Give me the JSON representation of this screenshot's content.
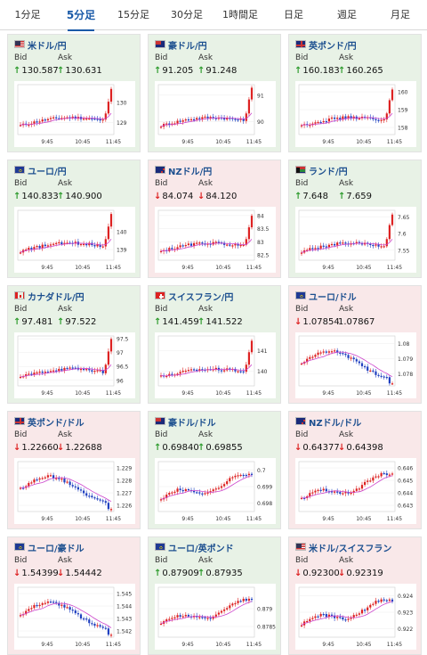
{
  "tabs": [
    "1分足",
    "5分足",
    "15分足",
    "30分足",
    "1時間足",
    "日足",
    "週足",
    "月足"
  ],
  "active_tab": 1,
  "labels": {
    "bid": "Bid",
    "ask": "Ask"
  },
  "colors": {
    "up_bg": "#e8f2e6",
    "down_bg": "#f9e8e9",
    "up_arrow": "#2e9b2e",
    "down_arrow": "#dd2222",
    "candle_up": "#dd2222",
    "candle_down": "#2040c0",
    "ma_line": "#cc44cc"
  },
  "cards": [
    {
      "pair": "米ドル/円",
      "flag": "us",
      "dir": "up",
      "bid": "130.587",
      "bid_dir": "up",
      "ask": "130.631",
      "ask_dir": "up"
    },
    {
      "pair": "豪ドル/円",
      "flag": "au",
      "dir": "up",
      "bid": "91.205",
      "bid_dir": "up",
      "ask": "91.248",
      "ask_dir": "up"
    },
    {
      "pair": "英ポンド/円",
      "flag": "gb",
      "dir": "up",
      "bid": "160.183",
      "bid_dir": "up",
      "ask": "160.265",
      "ask_dir": "up"
    },
    {
      "pair": "ユーロ/円",
      "flag": "eu",
      "dir": "up",
      "bid": "140.833",
      "bid_dir": "up",
      "ask": "140.900",
      "ask_dir": "up"
    },
    {
      "pair": "NZドル/円",
      "flag": "nz",
      "dir": "down",
      "bid": "84.074",
      "bid_dir": "down",
      "ask": "84.120",
      "ask_dir": "down"
    },
    {
      "pair": "ランド/円",
      "flag": "za",
      "dir": "up",
      "bid": "7.648",
      "bid_dir": "up",
      "ask": "7.659",
      "ask_dir": "up"
    },
    {
      "pair": "カナダドル/円",
      "flag": "ca",
      "dir": "up",
      "bid": "97.481",
      "bid_dir": "up",
      "ask": "97.522",
      "ask_dir": "up"
    },
    {
      "pair": "スイスフラン/円",
      "flag": "ch",
      "dir": "up",
      "bid": "141.459",
      "bid_dir": "up",
      "ask": "141.522",
      "ask_dir": "up"
    },
    {
      "pair": "ユーロ/ドル",
      "flag": "eu",
      "dir": "down",
      "bid": "1.07854",
      "bid_dir": "down",
      "ask": "1.07867",
      "ask_dir": "none"
    },
    {
      "pair": "英ポンド/ドル",
      "flag": "gb",
      "dir": "down",
      "bid": "1.22660",
      "bid_dir": "down",
      "ask": "1.22688",
      "ask_dir": "down"
    },
    {
      "pair": "豪ドル/ドル",
      "flag": "au",
      "dir": "up",
      "bid": "0.69840",
      "bid_dir": "up",
      "ask": "0.69855",
      "ask_dir": "up"
    },
    {
      "pair": "NZドル/ドル",
      "flag": "nz",
      "dir": "down",
      "bid": "0.64377",
      "bid_dir": "down",
      "ask": "0.64398",
      "ask_dir": "down"
    },
    {
      "pair": "ユーロ/豪ドル",
      "flag": "eu",
      "dir": "down",
      "bid": "1.54399",
      "bid_dir": "down",
      "ask": "1.54442",
      "ask_dir": "down"
    },
    {
      "pair": "ユーロ/英ポンド",
      "flag": "eu",
      "dir": "up",
      "bid": "0.87909",
      "bid_dir": "up",
      "ask": "0.87935",
      "ask_dir": "up"
    },
    {
      "pair": "米ドル/スイスフラン",
      "flag": "us",
      "dir": "down",
      "bid": "0.92300",
      "bid_dir": "down",
      "ask": "0.92319",
      "ask_dir": "down"
    }
  ],
  "chart_data": [
    {
      "type": "candlestick",
      "x_ticks": [
        "9:45",
        "10:45",
        "11:45"
      ],
      "y_ticks": [
        129,
        130
      ],
      "ylim": [
        128.4,
        130.9
      ],
      "pattern": "spike"
    },
    {
      "type": "candlestick",
      "x_ticks": [
        "9:45",
        "10:45",
        "11:45"
      ],
      "y_ticks": [
        90,
        91
      ],
      "ylim": [
        89.5,
        91.4
      ],
      "pattern": "spike"
    },
    {
      "type": "candlestick",
      "x_ticks": [
        "9:45",
        "10:45",
        "11:45"
      ],
      "y_ticks": [
        158,
        159,
        160
      ],
      "ylim": [
        157.6,
        160.4
      ],
      "pattern": "spike"
    },
    {
      "type": "candlestick",
      "x_ticks": [
        "9:45",
        "10:45",
        "11:45"
      ],
      "y_ticks": [
        139,
        140
      ],
      "ylim": [
        138.4,
        141.2
      ],
      "pattern": "spike"
    },
    {
      "type": "candlestick",
      "x_ticks": [
        "9:45",
        "10:45",
        "11:45"
      ],
      "y_ticks": [
        82.5,
        83,
        83.5,
        84
      ],
      "ylim": [
        82.3,
        84.2
      ],
      "pattern": "spike"
    },
    {
      "type": "candlestick",
      "x_ticks": [
        "9:45",
        "10:45",
        "11:45"
      ],
      "y_ticks": [
        7.55,
        7.6,
        7.65
      ],
      "ylim": [
        7.52,
        7.67
      ],
      "pattern": "spike"
    },
    {
      "type": "candlestick",
      "x_ticks": [
        "9:45",
        "10:45",
        "11:45"
      ],
      "y_ticks": [
        96,
        96.5,
        97,
        97.5
      ],
      "ylim": [
        95.8,
        97.6
      ],
      "pattern": "spike"
    },
    {
      "type": "candlestick",
      "x_ticks": [
        "9:45",
        "10:45",
        "11:45"
      ],
      "y_ticks": [
        140,
        141
      ],
      "ylim": [
        139.3,
        141.7
      ],
      "pattern": "spike"
    },
    {
      "type": "candlestick",
      "x_ticks": [
        "9:45",
        "10:45",
        "11:45"
      ],
      "y_ticks": [
        1.078,
        1.079,
        1.08
      ],
      "ylim": [
        1.0772,
        1.0805
      ],
      "pattern": "updown"
    },
    {
      "type": "candlestick",
      "x_ticks": [
        "9:45",
        "10:45",
        "11:45"
      ],
      "y_ticks": [
        1.226,
        1.227,
        1.228,
        1.229
      ],
      "ylim": [
        1.2255,
        1.2295
      ],
      "pattern": "updown"
    },
    {
      "type": "candlestick",
      "x_ticks": [
        "9:45",
        "10:45",
        "11:45"
      ],
      "y_ticks": [
        0.698,
        0.699,
        0.7
      ],
      "ylim": [
        0.6975,
        0.7005
      ],
      "pattern": "rise"
    },
    {
      "type": "candlestick",
      "x_ticks": [
        "9:45",
        "10:45",
        "11:45"
      ],
      "y_ticks": [
        0.643,
        0.644,
        0.645,
        0.646
      ],
      "ylim": [
        0.6425,
        0.6465
      ],
      "pattern": "rise"
    },
    {
      "type": "candlestick",
      "x_ticks": [
        "9:45",
        "10:45",
        "11:45"
      ],
      "y_ticks": [
        1.542,
        1.543,
        1.544,
        1.545
      ],
      "ylim": [
        1.5415,
        1.5455
      ],
      "pattern": "updown"
    },
    {
      "type": "candlestick",
      "x_ticks": [
        "9:45",
        "10:45",
        "11:45"
      ],
      "y_ticks": [
        0.8785,
        0.879
      ],
      "ylim": [
        0.8782,
        0.8796
      ],
      "pattern": "rise"
    },
    {
      "type": "candlestick",
      "x_ticks": [
        "9:45",
        "10:45",
        "11:45"
      ],
      "y_ticks": [
        0.922,
        0.923,
        0.924
      ],
      "ylim": [
        0.9215,
        0.9245
      ],
      "pattern": "rise"
    }
  ]
}
